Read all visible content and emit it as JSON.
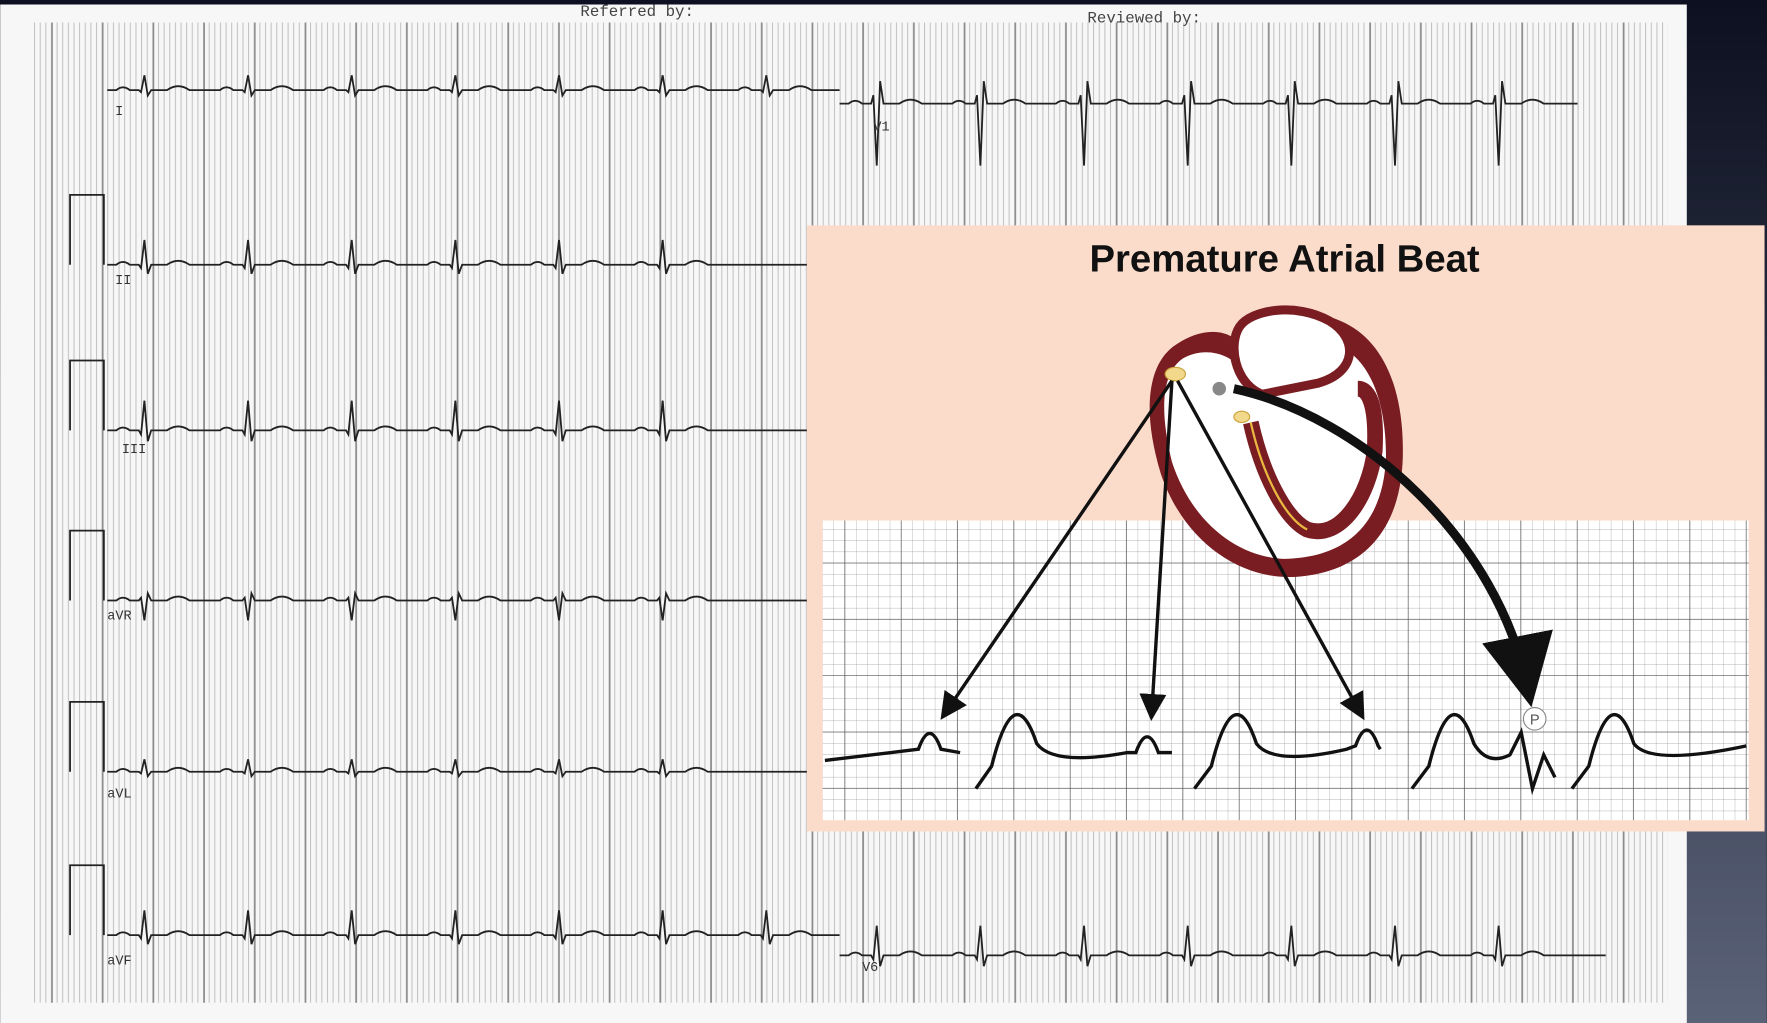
{
  "header": {
    "referred_by": "Referred by:",
    "reviewed_by": "Reviewed by:"
  },
  "leads": {
    "I": "I",
    "II": "II",
    "III": "III",
    "aVR": "aVR",
    "aVL": "aVL",
    "aVF": "aVF",
    "V1": "V1",
    "V6": "V6"
  },
  "inset": {
    "title": "Premature Atrial Beat",
    "p_label": "P"
  }
}
